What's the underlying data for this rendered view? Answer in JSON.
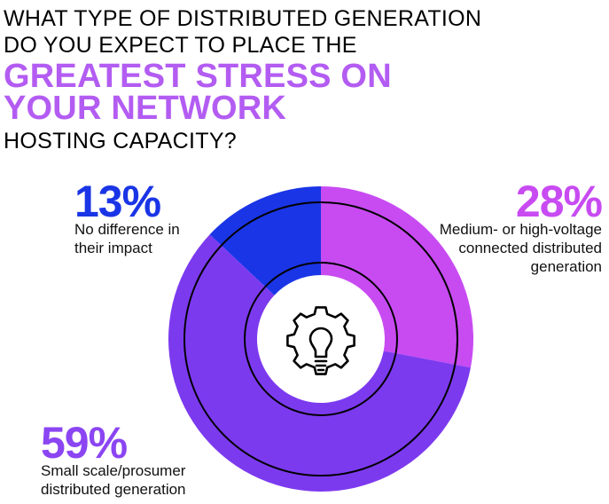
{
  "title": {
    "line1": "WHAT TYPE OF DISTRIBUTED GENERATION",
    "line2": "DO YOU EXPECT TO PLACE THE",
    "highlight1": "GREATEST STRESS ON",
    "highlight2": "YOUR NETWORK",
    "line3": "HOSTING CAPACITY?"
  },
  "colors": {
    "medium_high_voltage": "#c84bf2",
    "small_scale": "#7c3aef",
    "no_difference": "#1a35e6",
    "highlight_text": "#b35cf2"
  },
  "center_icon": "lightbulb-gear-icon",
  "chart_data": {
    "type": "pie",
    "variant": "donut",
    "categories": [
      "Medium- or high-voltage connected distributed generation",
      "Small scale/prosumer distributed generation",
      "No difference in their impact"
    ],
    "values": [
      28,
      59,
      13
    ],
    "labels": [
      "28%",
      "59%",
      "13%"
    ]
  },
  "legend": {
    "medium_high_voltage": {
      "pct": "28%",
      "line1": "Medium- or high-voltage",
      "line2": "connected distributed",
      "line3": "generation"
    },
    "no_difference": {
      "pct": "13%",
      "line1": "No difference in",
      "line2": "their impact"
    },
    "small_scale": {
      "pct": "59%",
      "line1": "Small scale/prosumer",
      "line2": "distributed generation"
    }
  }
}
